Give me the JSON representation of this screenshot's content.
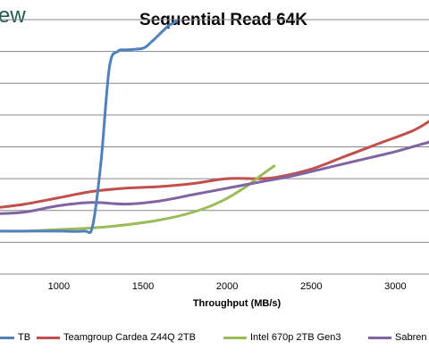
{
  "header": {
    "logo_text": "ew"
  },
  "chart_data": {
    "type": "line",
    "title": "Sequential Read 64K",
    "xlabel": "Throughput (MB/s)",
    "ylabel": "",
    "xlim": [
      650,
      3200
    ],
    "ylim": [
      0,
      8
    ],
    "grid": true,
    "xticks": [
      1000,
      1500,
      2000,
      2500,
      3000
    ],
    "legend_position": "bottom",
    "series": [
      {
        "name": "Teamgroup Cardea Z44Q 2TB",
        "color": "#c0504d",
        "x": [
          650,
          800,
          1000,
          1200,
          1400,
          1600,
          1800,
          2000,
          2200,
          2300,
          2500,
          2700,
          2900,
          3100,
          3200
        ],
        "y": [
          2.1,
          2.2,
          2.4,
          2.6,
          2.7,
          2.75,
          2.85,
          3.0,
          3.0,
          3.05,
          3.3,
          3.7,
          4.1,
          4.5,
          4.8
        ]
      },
      {
        "name": "Intel 670p 2TB Gen3",
        "color": "#9bbb59",
        "x": [
          650,
          800,
          1000,
          1200,
          1400,
          1600,
          1800,
          1950,
          2100,
          2200,
          2280
        ],
        "y": [
          1.35,
          1.35,
          1.4,
          1.45,
          1.55,
          1.7,
          1.95,
          2.25,
          2.7,
          3.1,
          3.4
        ]
      },
      {
        "name": "Sabrent",
        "color": "#8064a2",
        "x": [
          650,
          800,
          1000,
          1200,
          1400,
          1600,
          1800,
          2000,
          2200,
          2400,
          2600,
          2800,
          3000,
          3200
        ],
        "y": [
          1.9,
          1.95,
          2.15,
          2.25,
          2.2,
          2.3,
          2.5,
          2.7,
          2.9,
          3.1,
          3.35,
          3.6,
          3.85,
          4.15
        ]
      },
      {
        "name": "",
        "color": "#4f81bd",
        "x": [
          650,
          800,
          1000,
          1150,
          1200,
          1250,
          1300,
          1350,
          1400,
          1500,
          1550,
          1600,
          1650,
          1700
        ],
        "y": [
          1.35,
          1.35,
          1.35,
          1.35,
          1.5,
          3.5,
          6.5,
          7.0,
          7.05,
          7.1,
          7.3,
          7.55,
          7.8,
          7.95
        ]
      }
    ]
  },
  "legend": {
    "items": [
      {
        "label": "TB",
        "color": "#4f81bd"
      },
      {
        "label": "Teamgroup Cardea Z44Q 2TB",
        "color": "#c0504d"
      },
      {
        "label": "Intel 670p 2TB Gen3",
        "color": "#9bbb59"
      },
      {
        "label": "Sabren",
        "color": "#8064a2"
      }
    ]
  }
}
